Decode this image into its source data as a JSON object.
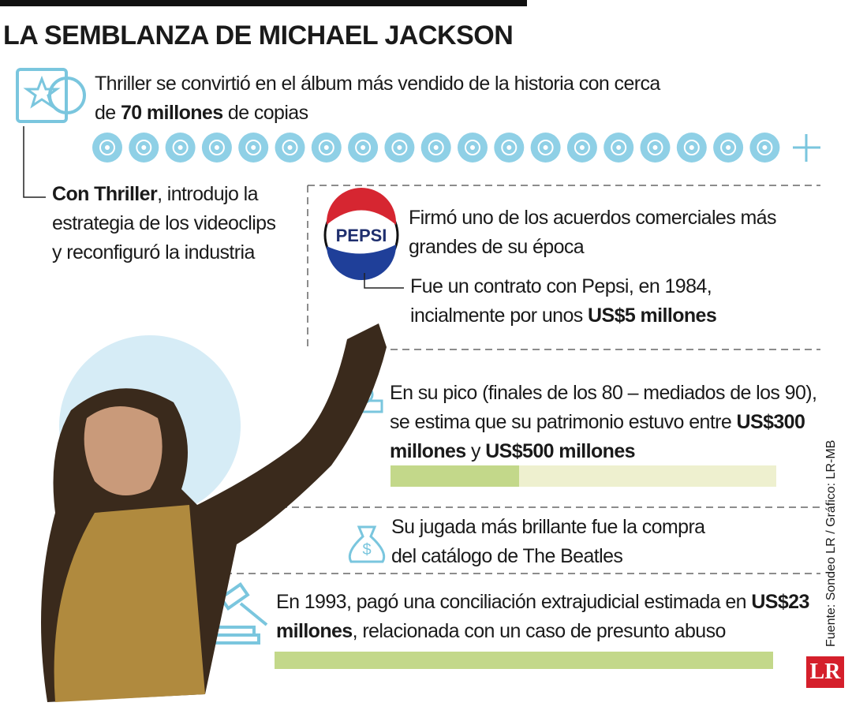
{
  "header": {
    "title": "LA SEMBLANZA DE MICHAEL JACKSON"
  },
  "items": [
    {
      "segments": [
        {
          "text": "Thriller se convirtió en el álbum más vendido de la historia con cerca de ",
          "bold": false
        },
        {
          "text": "70 millones",
          "bold": true
        },
        {
          "text": " de copias",
          "bold": false
        }
      ]
    },
    {
      "segments": [
        {
          "text": "Con Thriller",
          "bold": true
        },
        {
          "text": ", introdujo la estrategia de los videoclips y reconfiguró la industria",
          "bold": false
        }
      ]
    },
    {
      "segments": [
        {
          "text": "Firmó uno de los acuerdos comerciales más grandes de su época",
          "bold": false
        }
      ]
    },
    {
      "segments": [
        {
          "text": "Fue un contrato con Pepsi, en 1984, incialmente por unos ",
          "bold": false
        },
        {
          "text": "US$5 millones",
          "bold": true
        }
      ]
    },
    {
      "segments": [
        {
          "text": "En su pico (finales de los 80 – mediados de los 90), se estima que su patrimonio estuvo entre ",
          "bold": false
        },
        {
          "text": "US$300 millones",
          "bold": true
        },
        {
          "text": " y ",
          "bold": false
        },
        {
          "text": "US$500 millones",
          "bold": true
        }
      ]
    },
    {
      "segments": [
        {
          "text": "Su jugada más brillante fue la compra del catálogo de The Beatles",
          "bold": false
        }
      ]
    },
    {
      "segments": [
        {
          "text": "En 1993, pagó una conciliación extrajudicial estimada en ",
          "bold": false
        },
        {
          "text": "US$23 millones",
          "bold": true
        },
        {
          "text": ", relacionada con un caso de presunto abuso",
          "bold": false
        }
      ]
    }
  ],
  "pepsi_logo": "PEPSI",
  "source": "Fuente: Sondeo LR / Gráfico: LR-MB",
  "logo": "LR"
}
